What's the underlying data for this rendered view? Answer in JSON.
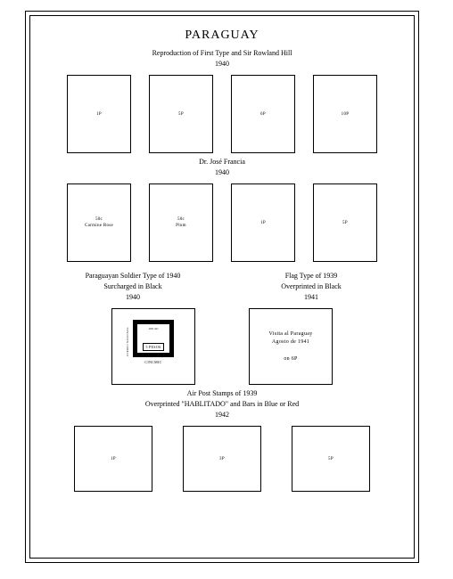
{
  "country": "PARAGUAY",
  "section1": {
    "title": "Reproduction of First Type and Sir Rowland Hill",
    "year": "1940",
    "stamps": [
      "1P",
      "5P",
      "6P",
      "10P"
    ]
  },
  "section2": {
    "title": "Dr. José Francia",
    "year": "1940",
    "stamps": [
      {
        "val": "50c",
        "color": "Carmine Rose"
      },
      {
        "val": "50c",
        "color": "Plum"
      },
      {
        "val": "1P",
        "color": ""
      },
      {
        "val": "5P",
        "color": ""
      }
    ]
  },
  "section3a": {
    "title": "Paraguayan Soldier Type of 1940",
    "sub": "Surcharged in Black",
    "year": "1940",
    "ill": {
      "top": "100 ml",
      "side": "CORREO NACIONAL",
      "price": "5 PESOS",
      "bottom": "CINCMIC"
    }
  },
  "section3b": {
    "title": "Flag Type of 1939",
    "sub": "Overprinted in Black",
    "year": "1941",
    "text1": "Visita al Paraguay",
    "text2": "Agosto de 1941",
    "text3": "on 6P"
  },
  "section4": {
    "title": "Air Post Stamps of 1939",
    "sub": "Overprinted \"HABLITADO\" and Bars in Blue or Red",
    "year": "1942",
    "stamps": [
      "1P",
      "3P",
      "5P"
    ]
  }
}
